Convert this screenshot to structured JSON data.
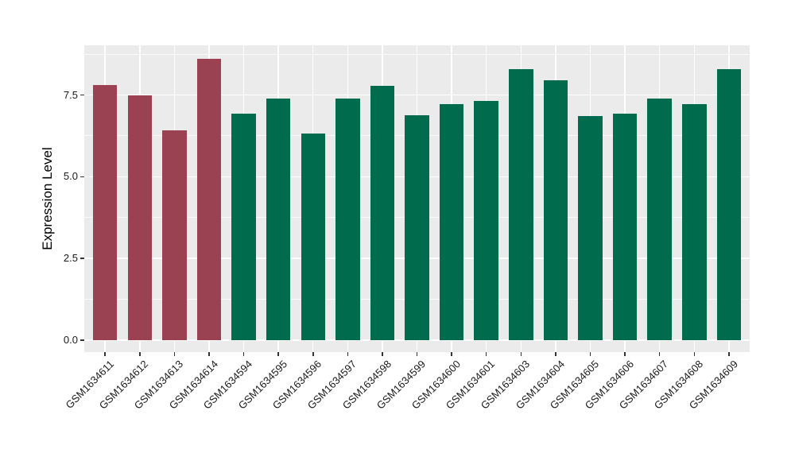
{
  "chart_data": {
    "type": "bar",
    "title": "",
    "xlabel": "",
    "ylabel": "Expression Level",
    "categories": [
      "GSM1634611",
      "GSM1634612",
      "GSM1634613",
      "GSM1634614",
      "GSM1634594",
      "GSM1634595",
      "GSM1634596",
      "GSM1634597",
      "GSM1634598",
      "GSM1634599",
      "GSM1634600",
      "GSM1634601",
      "GSM1634603",
      "GSM1634604",
      "GSM1634605",
      "GSM1634606",
      "GSM1634607",
      "GSM1634608",
      "GSM1634609"
    ],
    "values": [
      7.8,
      7.5,
      6.43,
      8.6,
      6.94,
      7.4,
      6.33,
      7.4,
      7.79,
      6.89,
      7.21,
      7.33,
      8.28,
      7.96,
      6.85,
      6.94,
      7.4,
      7.23,
      8.28
    ],
    "bar_groups": [
      "highlight",
      "highlight",
      "highlight",
      "highlight",
      "normal",
      "normal",
      "normal",
      "normal",
      "normal",
      "normal",
      "normal",
      "normal",
      "normal",
      "normal",
      "normal",
      "normal",
      "normal",
      "normal",
      "normal"
    ],
    "group_colors": {
      "highlight": "#9A4252",
      "normal": "#006B4D"
    },
    "ylim": [
      -0.37,
      9.02
    ],
    "yticks": [
      0,
      2.5,
      5,
      7.5
    ],
    "ytick_labels": [
      "0.0",
      "2.5",
      "5.0",
      "7.5"
    ],
    "yticks_minor": [
      1.25,
      3.75,
      6.25,
      8.75
    ],
    "grid": true,
    "legend": "none",
    "panel_background": "#EBEBEB",
    "gridline_color": "#FFFFFF",
    "axis_text_color": "#1A1A1A",
    "bar_width_fraction": 0.7,
    "x_tick_angle_deg": 45
  }
}
